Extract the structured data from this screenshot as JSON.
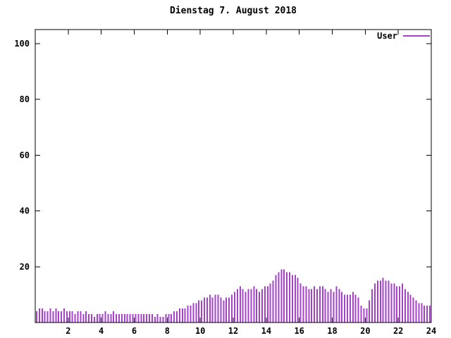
{
  "window": {
    "background": "#ffffff"
  },
  "legend": {
    "label": "User"
  },
  "colors": {
    "series": "#a640c8",
    "axis": "#000000",
    "text": "#000000",
    "background": "#ffffff"
  },
  "chart_data": {
    "type": "bar",
    "style": "impulses",
    "title": "Dienstag 7. August 2018",
    "xlabel": "",
    "ylabel": "",
    "xlim": [
      0,
      24
    ],
    "ylim": [
      0,
      105
    ],
    "x_ticks": [
      2,
      4,
      6,
      8,
      10,
      12,
      14,
      16,
      18,
      20,
      22,
      24
    ],
    "y_ticks": [
      20,
      40,
      60,
      80,
      100
    ],
    "grid": false,
    "legend_position": "top-right",
    "x_unit": "hour-of-day",
    "interval_minutes": 10,
    "series": [
      {
        "name": "User",
        "color": "#a640c8",
        "values": [
          4,
          5,
          5,
          4,
          4,
          5,
          4,
          5,
          4,
          4,
          5,
          4,
          4,
          4,
          3,
          4,
          4,
          3,
          4,
          3,
          3,
          2,
          3,
          3,
          3,
          4,
          3,
          3,
          4,
          3,
          3,
          3,
          3,
          3,
          3,
          3,
          3,
          3,
          3,
          3,
          3,
          3,
          3,
          2,
          3,
          2,
          2,
          3,
          3,
          3,
          4,
          4,
          5,
          5,
          5,
          6,
          6,
          7,
          7,
          8,
          8,
          9,
          9,
          10,
          9,
          10,
          10,
          9,
          8,
          9,
          9,
          10,
          11,
          12,
          13,
          12,
          11,
          12,
          12,
          13,
          12,
          11,
          12,
          13,
          13,
          14,
          15,
          17,
          18,
          19,
          19,
          18,
          18,
          17,
          17,
          16,
          14,
          13,
          13,
          12,
          12,
          13,
          12,
          13,
          13,
          12,
          11,
          12,
          11,
          13,
          12,
          11,
          10,
          10,
          10,
          11,
          10,
          9,
          6,
          5,
          5,
          8,
          12,
          14,
          15,
          15,
          16,
          15,
          15,
          14,
          14,
          13,
          13,
          14,
          12,
          11,
          10,
          9,
          8,
          7,
          7,
          6,
          6,
          6
        ]
      }
    ]
  }
}
